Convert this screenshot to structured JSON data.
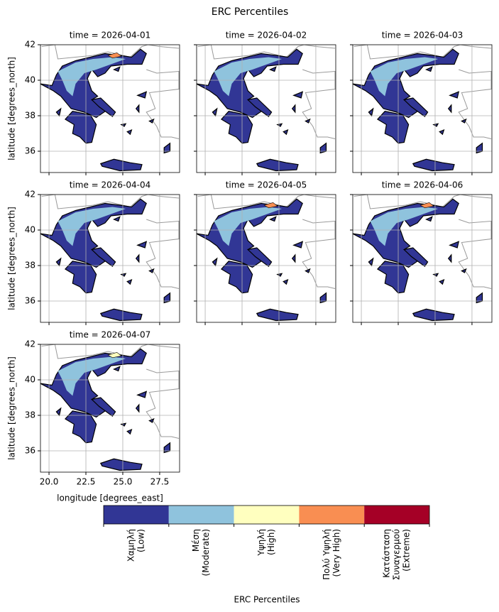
{
  "chart_data": {
    "type": "map-facets",
    "title": "ERC Percentiles",
    "panels": [
      "time = 2026-04-01",
      "time = 2026-04-02",
      "time = 2026-04-03",
      "time = 2026-04-04",
      "time = 2026-04-05",
      "time = 2026-04-06",
      "time = 2026-04-07"
    ],
    "xlabel": "longitude [degrees_east]",
    "ylabel": "latitude [degrees_north]",
    "xlim": [
      19.42,
      28.85
    ],
    "ylim": [
      34.8,
      42
    ],
    "xticks": [
      {
        "value": 20,
        "label": "20.0"
      },
      22.5,
      {
        "value": 25,
        "label": "25.0"
      },
      27.5
    ],
    "yticks": [
      36,
      38,
      40,
      42
    ],
    "grid": true,
    "colorbar": {
      "label": "ERC Percentiles",
      "categories": [
        [
          "Χαμηλή",
          "(Low)"
        ],
        [
          "Μέση",
          "(Moderate)"
        ],
        [
          "Υψηλή",
          "(High)"
        ],
        [
          "Πολύ Υψηλή",
          "(Very High)"
        ],
        [
          "Κατάσταση",
          "Συναγερμού",
          "(Extreme)"
        ]
      ],
      "colors": [
        "#313695",
        "#8fc3dd",
        "#ffffbf",
        "#f98e52",
        "#a50026"
      ]
    }
  }
}
